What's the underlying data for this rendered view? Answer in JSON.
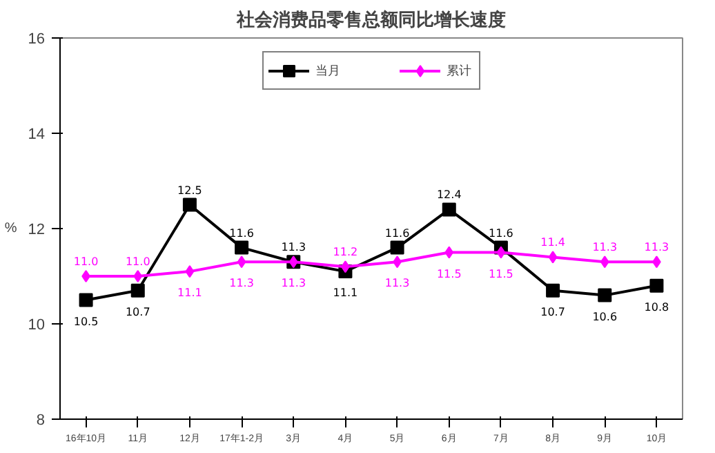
{
  "chart_data": {
    "type": "line",
    "title": "社会消费品零售总额同比增长速度",
    "ylabel": "%",
    "categories": [
      "16年10月",
      "11月",
      "12月",
      "17年1-2月",
      "3月",
      "4月",
      "5月",
      "6月",
      "7月",
      "8月",
      "9月",
      "10月"
    ],
    "series": [
      {
        "name": "当月",
        "color": "#000000",
        "marker": "square",
        "values": [
          10.5,
          10.7,
          12.5,
          11.6,
          11.3,
          11.1,
          11.6,
          12.4,
          11.6,
          10.7,
          10.6,
          10.8
        ],
        "value_labels": [
          "10.5",
          "10.7",
          "12.5",
          "11.6",
          "11.3",
          "11.1",
          "11.6",
          "12.4",
          "11.6",
          "10.7",
          "10.6",
          "10.8"
        ]
      },
      {
        "name": "累计",
        "color": "#ff00ff",
        "marker": "diamond",
        "values": [
          11.0,
          11.0,
          11.1,
          11.3,
          11.3,
          11.2,
          11.3,
          11.5,
          11.5,
          11.4,
          11.3,
          11.3
        ],
        "value_labels": [
          "11.0",
          "11.0",
          "11.1",
          "11.3",
          "11.3",
          "11.2",
          "11.3",
          "11.5",
          "11.5",
          "11.4",
          "11.3",
          "11.3"
        ]
      }
    ],
    "ylim": [
      8,
      16
    ],
    "yticks": [
      8,
      10,
      12,
      14,
      16
    ],
    "legend": "top",
    "grid": false,
    "line_style": "solid"
  }
}
